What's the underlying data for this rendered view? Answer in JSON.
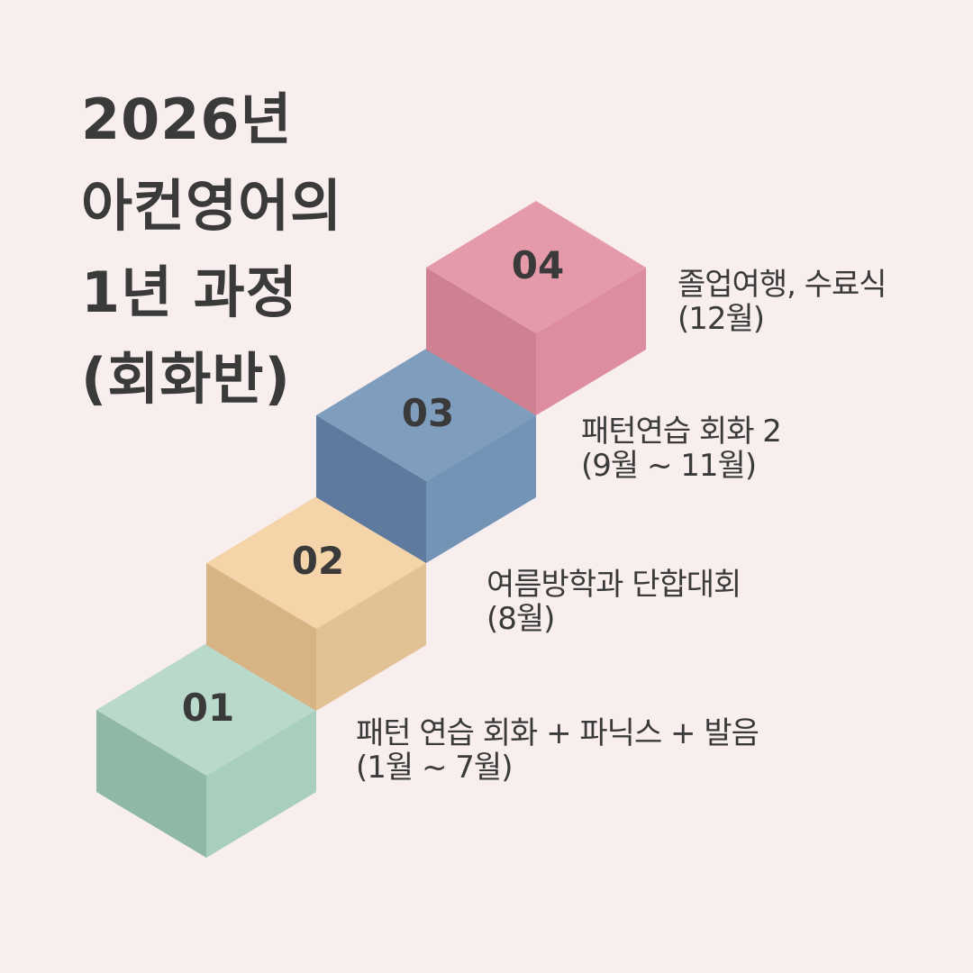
{
  "title": {
    "lines": [
      "2026년",
      "아컨영어의",
      "1년 과정",
      "(회화반)"
    ]
  },
  "steps": [
    {
      "number": "01",
      "line1": "패턴 연습 회화  +  파닉스 +  발음",
      "line2": "(1월 ~ 7월)",
      "colors": {
        "top": "#b9d9cb",
        "left": "#90b8a6",
        "right": "#a8cfbe"
      }
    },
    {
      "number": "02",
      "line1": "여름방학과 단합대회",
      "line2": "(8월)",
      "colors": {
        "top": "#f4d4a8",
        "left": "#d8b484",
        "right": "#e2c295"
      }
    },
    {
      "number": "03",
      "line1": "패턴연습 회화 2",
      "line2": "(9월 ~ 11월)",
      "colors": {
        "top": "#7f9dbd",
        "left": "#5e7b9f",
        "right": "#7393b7"
      }
    },
    {
      "number": "04",
      "line1": "졸업여행, 수료식",
      "line2": "(12월)",
      "colors": {
        "top": "#e59aaa",
        "left": "#cf8192",
        "right": "#de8da0"
      }
    }
  ]
}
